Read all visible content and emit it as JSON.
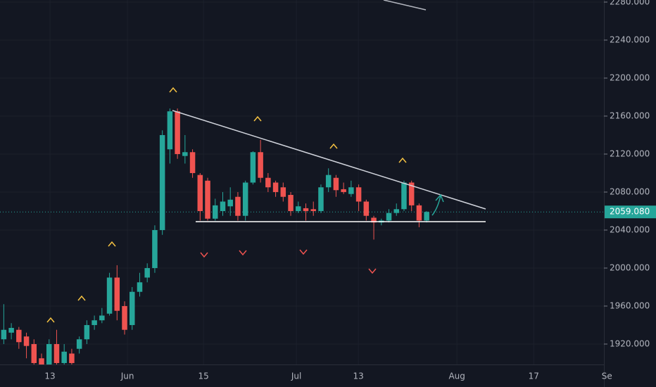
{
  "chart_data": {
    "type": "candlestick",
    "x": [
      0.5,
      1.5,
      2.5,
      3.5,
      4.5,
      5.5,
      6.5,
      7.5,
      8.5,
      9.5,
      10.5,
      11.5,
      12.5,
      13.5,
      14.5,
      15.5,
      16.5,
      17.5,
      18.5,
      19.5,
      20.5,
      21.5,
      22.5,
      23.5,
      24.5,
      25.5,
      26.5,
      27.5,
      28.5,
      29.5,
      30.5,
      31.5,
      32.5,
      33.5,
      34.5,
      35.5,
      36.5,
      37.5,
      38.5,
      39.5,
      40.5,
      41.5,
      42.5,
      43.5,
      44.5,
      45.5,
      46.5,
      47.5,
      48.5,
      49.5,
      50.5,
      51.5,
      52.5,
      53.5,
      54.5,
      55.5,
      56.5
    ],
    "open": [
      1925,
      1932,
      1935,
      1928,
      1920,
      1905,
      1898,
      1920,
      1900,
      1910,
      1915,
      1925,
      1940,
      1945,
      1952,
      1990,
      1960,
      1940,
      1975,
      1990,
      2000,
      2040,
      2125,
      2165,
      2118,
      2122,
      2098,
      2092,
      2052,
      2060,
      2065,
      2075,
      2055,
      2090,
      2122,
      2095,
      2090,
      2085,
      2077,
      2060,
      2063,
      2062,
      2060,
      2085,
      2095,
      2083,
      2078,
      2085,
      2070,
      2053,
      2048,
      2050,
      2058,
      2062,
      2090,
      2066,
      2050
    ],
    "high": [
      1962,
      1942,
      1938,
      1932,
      1925,
      1910,
      1925,
      1935,
      1920,
      1915,
      1928,
      1945,
      1950,
      1958,
      1995,
      2003,
      1965,
      1980,
      1995,
      2005,
      2045,
      2145,
      2168,
      2168,
      2140,
      2125,
      2100,
      2095,
      2073,
      2080,
      2085,
      2080,
      2092,
      2123,
      2135,
      2100,
      2092,
      2090,
      2080,
      2070,
      2068,
      2070,
      2088,
      2105,
      2098,
      2090,
      2092,
      2088,
      2072,
      2055,
      2052,
      2062,
      2068,
      2092,
      2092,
      2068,
      2060
    ],
    "low": [
      1920,
      1925,
      1915,
      1905,
      1895,
      1895,
      1895,
      1895,
      1898,
      1895,
      1910,
      1920,
      1935,
      1942,
      1950,
      1945,
      1930,
      1935,
      1970,
      1985,
      1995,
      2035,
      2110,
      2115,
      2110,
      2095,
      2050,
      2050,
      2050,
      2055,
      2055,
      2050,
      2050,
      2088,
      2090,
      2080,
      2075,
      2070,
      2055,
      2058,
      2050,
      2055,
      2058,
      2080,
      2075,
      2078,
      2075,
      2060,
      2050,
      2030,
      2045,
      2048,
      2055,
      2060,
      2060,
      2043,
      2048
    ],
    "close": [
      1935,
      1937,
      1922,
      1918,
      1900,
      1898,
      1920,
      1900,
      1912,
      1900,
      1925,
      1940,
      1945,
      1950,
      1990,
      1955,
      1935,
      1975,
      1985,
      2000,
      2040,
      2140,
      2165,
      2120,
      2122,
      2100,
      2060,
      2052,
      2066,
      2070,
      2072,
      2055,
      2090,
      2122,
      2095,
      2085,
      2080,
      2075,
      2060,
      2065,
      2060,
      2060,
      2085,
      2098,
      2082,
      2080,
      2085,
      2070,
      2055,
      2048,
      2050,
      2058,
      2062,
      2090,
      2066,
      2050,
      2059.08
    ],
    "up_color": "#26a69a",
    "down_color": "#ef5350",
    "ylim": [
      1898.5,
      2282.2
    ],
    "yticks": [
      {
        "value": 1920,
        "label": "1920.000"
      },
      {
        "value": 1960,
        "label": "1960.000"
      },
      {
        "value": 2000,
        "label": "2000.000"
      },
      {
        "value": 2040,
        "label": "2040.000"
      },
      {
        "value": 2080,
        "label": "2080.000"
      },
      {
        "value": 2120,
        "label": "2120.000"
      },
      {
        "value": 2160,
        "label": "2160.000"
      },
      {
        "value": 2200,
        "label": "2200.000"
      },
      {
        "value": 2240,
        "label": "2240.000"
      },
      {
        "value": 2280,
        "label": "2280.000"
      }
    ],
    "xlim": [
      0,
      81
    ],
    "xticks": [
      {
        "value": 6.62,
        "label": "13"
      },
      {
        "value": 16.88,
        "label": "Jun"
      },
      {
        "value": 26.95,
        "label": "15"
      },
      {
        "value": 39.25,
        "label": "Jul"
      },
      {
        "value": 47.46,
        "label": "13"
      },
      {
        "value": 60.51,
        "label": "Aug"
      },
      {
        "value": 70.68,
        "label": "17"
      },
      {
        "value": 80.37,
        "label": "Se"
      }
    ],
    "last_price": {
      "value": 2059.08,
      "label": "2059.080"
    },
    "grid": true
  }
}
